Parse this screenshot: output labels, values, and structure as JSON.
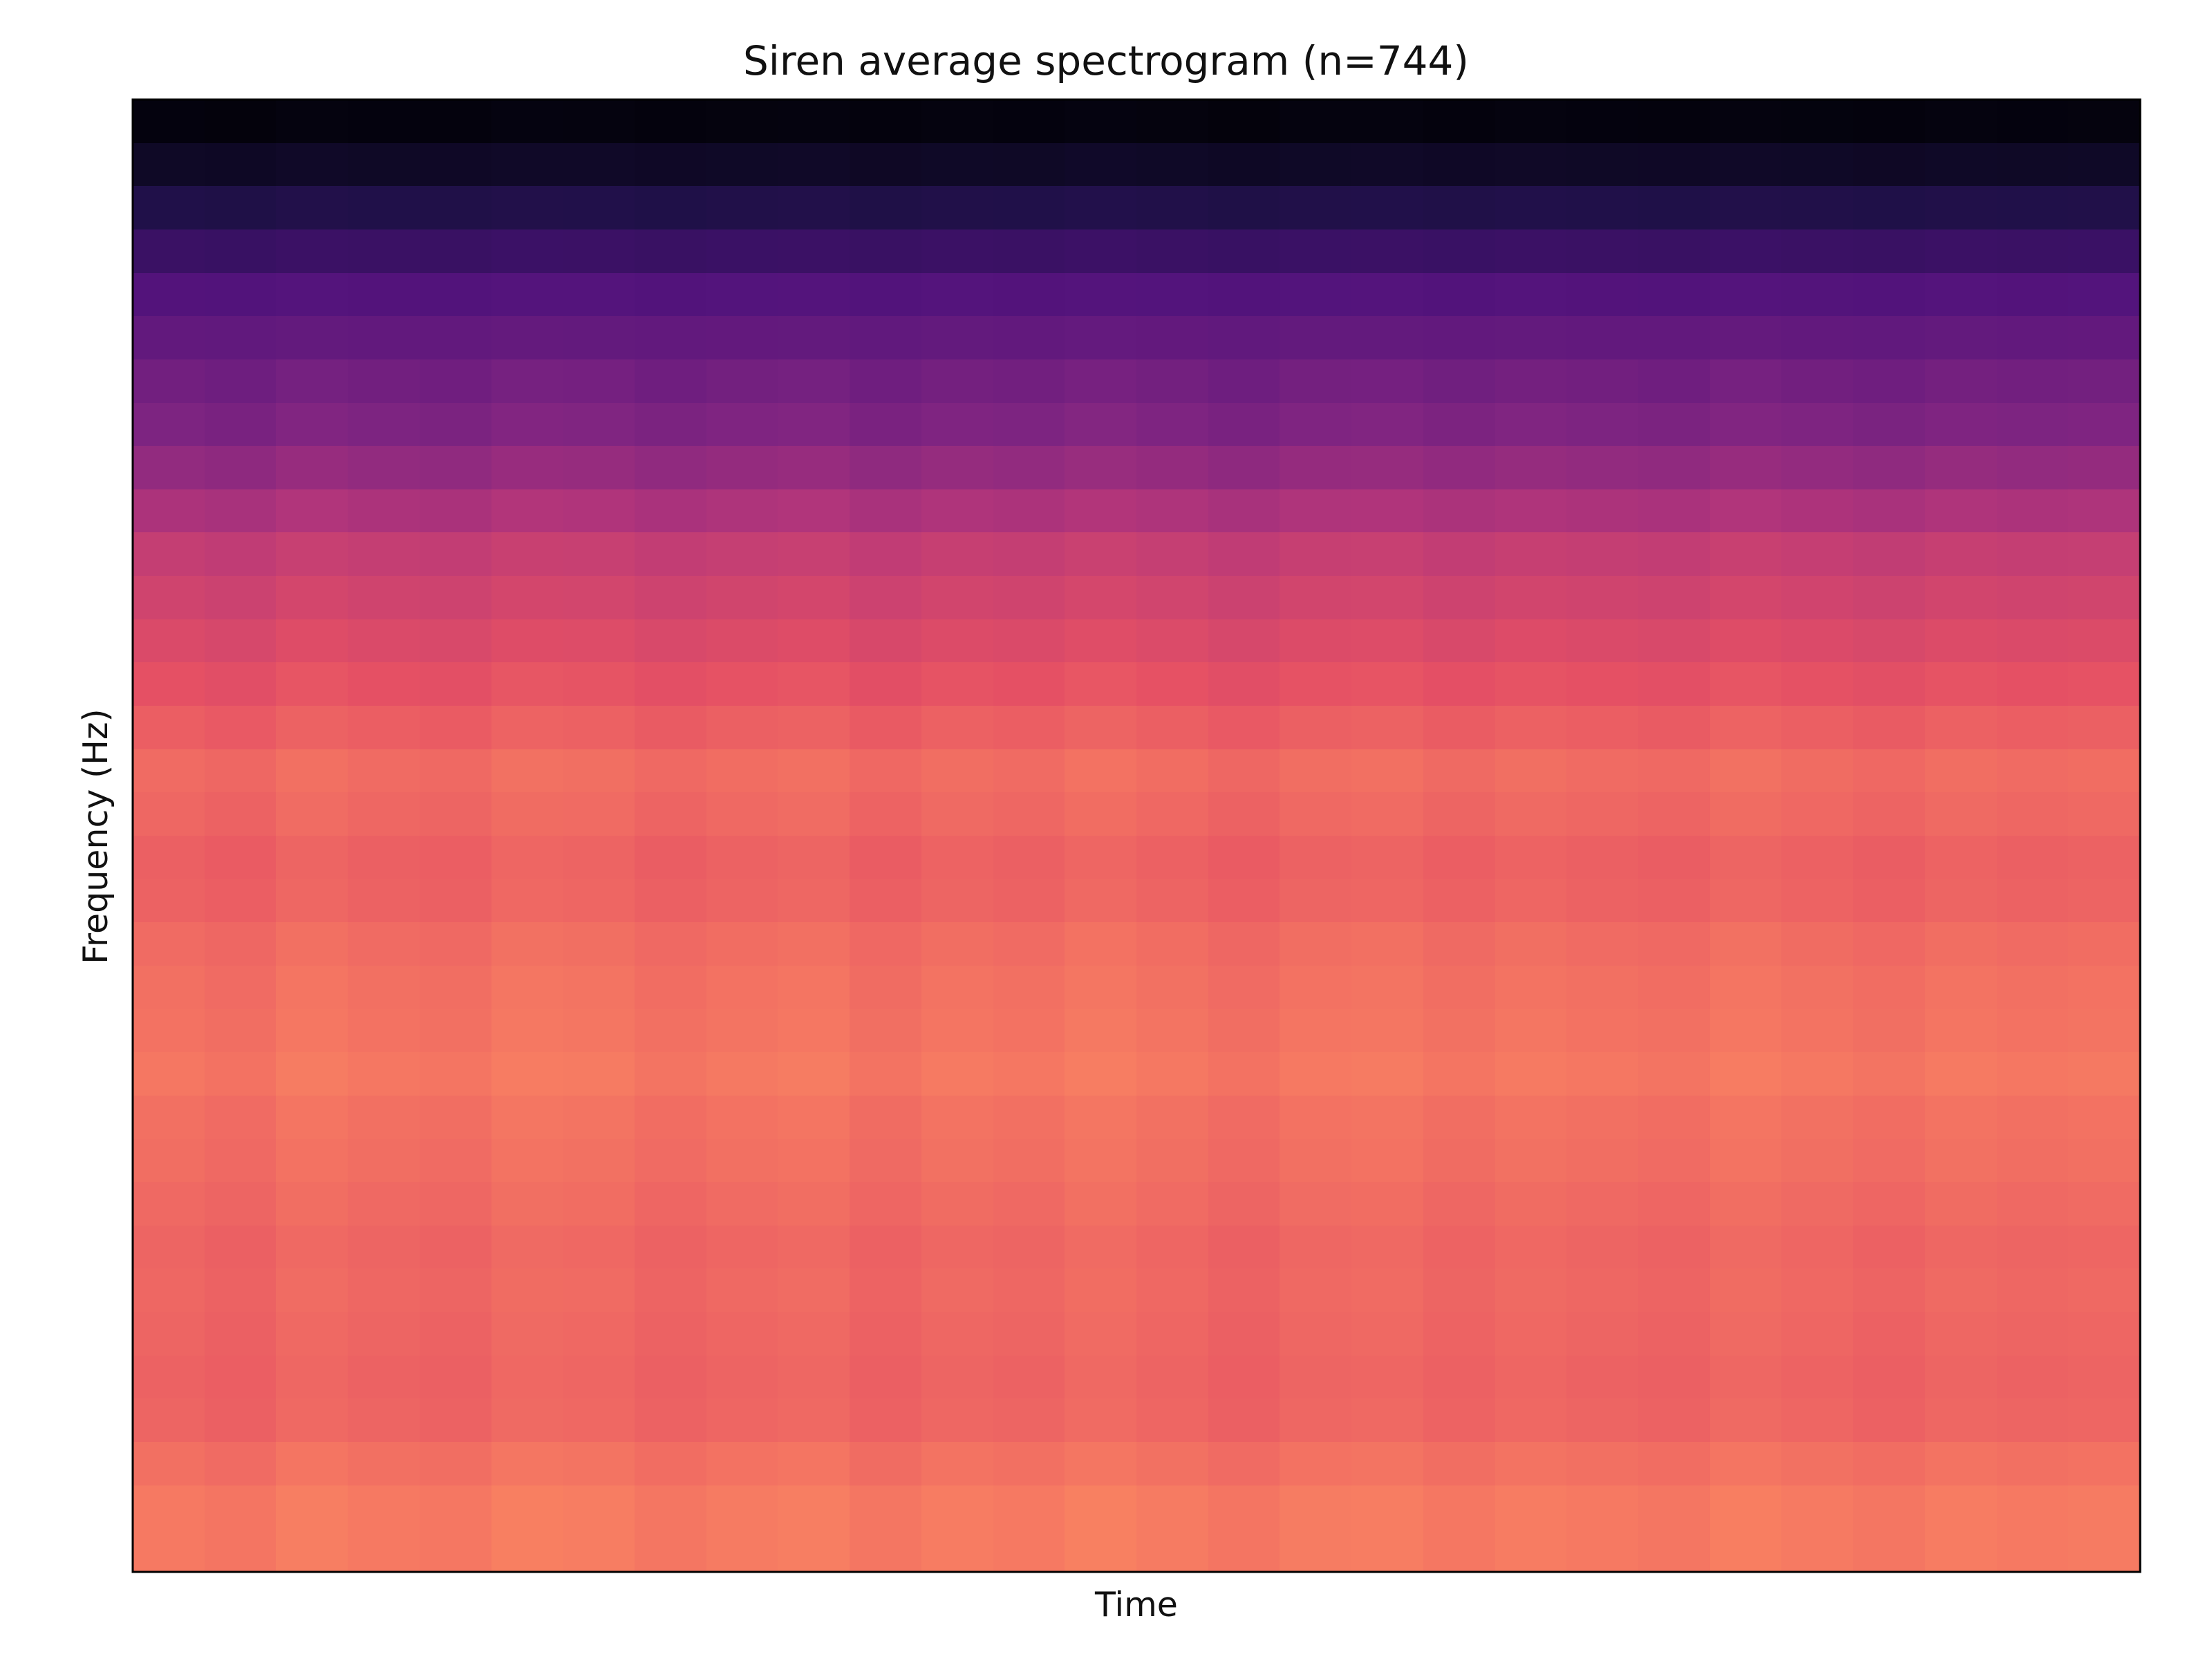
{
  "chart_data": {
    "type": "heatmap",
    "title": "Siren average spectrogram (n=744)",
    "xlabel": "Time",
    "ylabel": "Frequency (Hz)",
    "colormap": "magma",
    "x_ticks": [],
    "y_ticks": [],
    "grid": false,
    "legend": "none",
    "rows_top_to_bottom": [
      0.02,
      0.07,
      0.14,
      0.2,
      0.26,
      0.3,
      0.34,
      0.37,
      0.42,
      0.48,
      0.54,
      0.57,
      0.6,
      0.63,
      0.66,
      0.69,
      0.68,
      0.665,
      0.67,
      0.69,
      0.7,
      0.705,
      0.715,
      0.7,
      0.695,
      0.685,
      0.675,
      0.68,
      0.675,
      0.67,
      0.675,
      0.7,
      0.72,
      0.72
    ],
    "time_profile": [
      0.0,
      -0.01,
      0.01,
      0.0,
      -0.005,
      0.012,
      0.008,
      -0.006,
      0.004,
      0.01,
      -0.008,
      0.006,
      0.0,
      0.014,
      0.003,
      -0.01,
      0.005,
      0.009,
      -0.004,
      0.007,
      0.0,
      -0.006,
      0.011,
      0.002,
      -0.007,
      0.006,
      0.0,
      0.004
    ]
  }
}
